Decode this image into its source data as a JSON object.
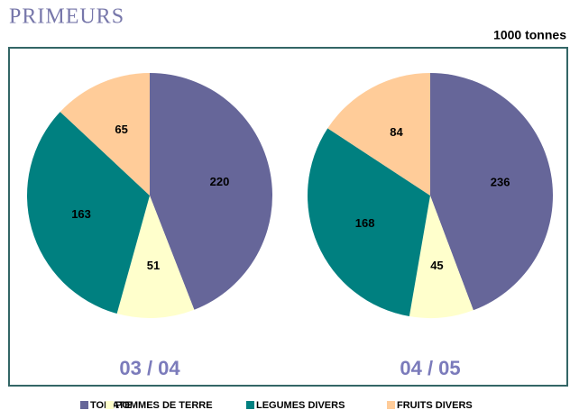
{
  "title": "PRIMEURS",
  "unit": "1000 tonnes",
  "chart_data": [
    {
      "type": "pie",
      "title": "03 / 04",
      "categories": [
        "TOMATE",
        "POMMES DE TERRE",
        "LEGUMES DIVERS",
        "FRUITS DIVERS"
      ],
      "values": [
        220,
        51,
        163,
        65
      ],
      "colors": [
        "#666699",
        "#ffffcc",
        "#008080",
        "#ffcc99"
      ]
    },
    {
      "type": "pie",
      "title": "04 / 05",
      "categories": [
        "TOMATE",
        "POMMES DE TERRE",
        "LEGUMES DIVERS",
        "FRUITS DIVERS"
      ],
      "values": [
        236,
        45,
        168,
        84
      ],
      "colors": [
        "#666699",
        "#ffffcc",
        "#008080",
        "#ffcc99"
      ]
    }
  ]
}
